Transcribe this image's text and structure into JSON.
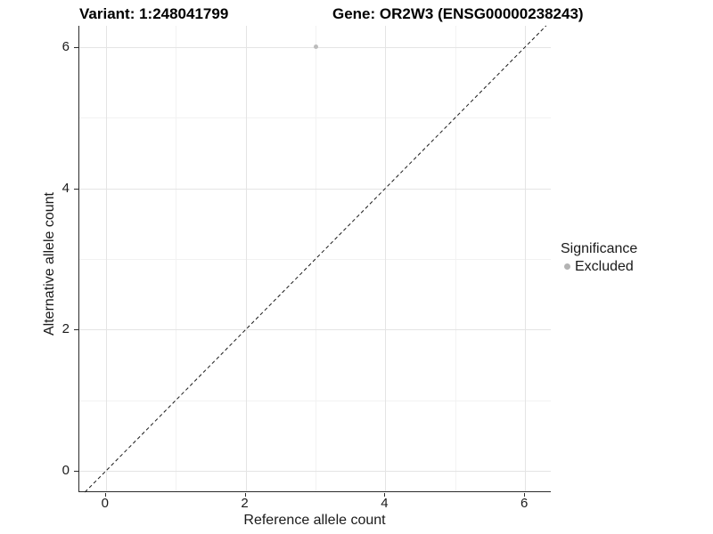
{
  "titles": {
    "variant": "Variant: 1:248041799",
    "gene": "Gene: OR2W3 (ENSG00000238243)"
  },
  "axes": {
    "x": {
      "label": "Reference allele count"
    },
    "y": {
      "label": "Alternative allele count"
    }
  },
  "legend": {
    "title": "Significance",
    "items": [
      {
        "label": "Excluded",
        "color": "#b3b3b3"
      }
    ]
  },
  "colors": {
    "point": "#bcbcbc",
    "grid_major": "#e4e4e4",
    "grid_minor": "#f2f2f2",
    "axis_line": "#2b2b2b",
    "dashed_line": "#1a1a1a",
    "background": "#ffffff"
  },
  "chart_data": {
    "type": "scatter",
    "title": "Variant: 1:248041799   Gene: OR2W3 (ENSG00000238243)",
    "xlabel": "Reference allele count",
    "ylabel": "Alternative allele count",
    "xlim": [
      -0.38,
      6.38
    ],
    "ylim": [
      -0.3,
      6.3
    ],
    "x_ticks": [
      0,
      2,
      4,
      6
    ],
    "y_ticks": [
      0,
      2,
      4,
      6
    ],
    "x_minor_ticks": [
      1,
      3,
      5
    ],
    "y_minor_ticks": [
      1,
      3,
      5
    ],
    "grid": true,
    "legend_position": "right",
    "legend_title": "Significance",
    "series": [
      {
        "name": "Excluded",
        "color": "#bcbcbc",
        "points": [
          {
            "x": 3,
            "y": 6
          }
        ]
      }
    ],
    "reference_line": {
      "equation": "y = x",
      "style": "dashed"
    }
  }
}
